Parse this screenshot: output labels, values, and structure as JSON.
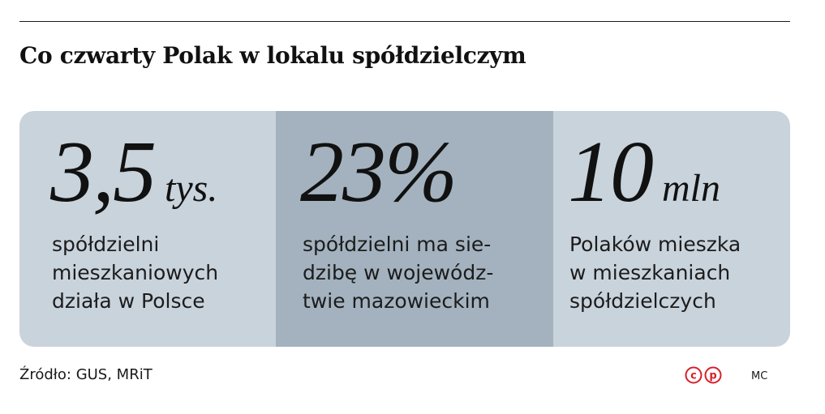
{
  "headline": "Co czwarty Polak w lokalu spółdzielczym",
  "stats": [
    {
      "figure": "3,5",
      "unit": "tys.",
      "lines": [
        "spółdzielni",
        "mieszkaniowych",
        "działa w Polsce"
      ],
      "background": "#c9d3dc"
    },
    {
      "figure": "23%",
      "unit": "",
      "lines": [
        "spółdzielni ma sie-",
        "dzibę w wojewódz-",
        "twie mazowieckim"
      ],
      "background": "#a3b2be"
    },
    {
      "figure": "10",
      "unit": "mln",
      "lines": [
        "Polaków mieszka",
        "w mieszkaniach",
        "spółdzielczych"
      ],
      "background": "#c9d3dc"
    }
  ],
  "source": "Źródło: GUS, MRiT",
  "logo": {
    "letters": [
      "c",
      "p"
    ],
    "color": "#d6202a"
  },
  "author": "MC"
}
